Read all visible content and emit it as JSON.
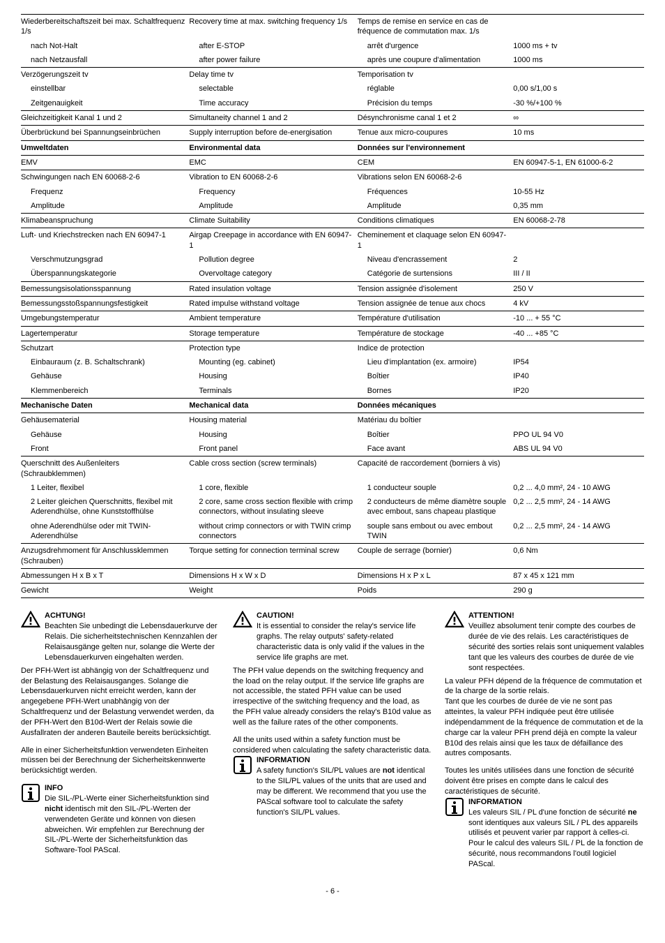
{
  "table": {
    "rows": [
      {
        "de": "Wiederbereitschaftszeit bei max. Schaltfrequenz 1/s",
        "en": "Recovery time at max. switching frequency 1/s",
        "fr": "Temps de remise en service en cas de fréquence de commutation max. 1/s",
        "val": ""
      },
      {
        "nb": true,
        "de": "  nach Not-Halt",
        "en": "  after E-STOP",
        "fr": "  arrêt d'urgence",
        "val": "1000 ms + tv"
      },
      {
        "nb": true,
        "de": "  nach Netzausfall",
        "en": "  after power failure",
        "fr": "  après une coupure d'alimentation",
        "val": "1000 ms"
      },
      {
        "de": "Verzögerungszeit tv",
        "en": "Delay time tv",
        "fr": "Temporisation tv",
        "val": ""
      },
      {
        "nb": true,
        "de": "  einstellbar",
        "en": "  selectable",
        "fr": "  réglable",
        "val": "0,00 s/1,00 s"
      },
      {
        "nb": true,
        "de": "  Zeitgenauigkeit",
        "en": "  Time accuracy",
        "fr": "  Précision du temps",
        "val": "-30 %/+100 %"
      },
      {
        "de": "Gleichzeitigkeit Kanal 1 und 2",
        "en": "Simultaneity channel 1 and 2",
        "fr": "Désynchronisme canal 1 et 2",
        "val": "∞"
      },
      {
        "de": "Überbrückund bei Spannungseinbrüchen",
        "en": "Supply interruption before de-energisation",
        "fr": "Tenue aux micro-coupures",
        "val": "10 ms"
      },
      {
        "hdr": true,
        "de": "Umweltdaten",
        "en": "Environmental data",
        "fr": "Données sur l'environnement",
        "val": ""
      },
      {
        "de": "EMV",
        "en": "EMC",
        "fr": "CEM",
        "val": "EN 60947-5-1, EN 61000-6-2"
      },
      {
        "de": "Schwingungen nach EN 60068-2-6",
        "en": "Vibration to EN 60068-2-6",
        "fr": "Vibrations selon EN 60068-2-6",
        "val": ""
      },
      {
        "nb": true,
        "de": "  Frequenz",
        "en": "  Frequency",
        "fr": "  Fréquences",
        "val": "10-55 Hz"
      },
      {
        "nb": true,
        "de": "  Amplitude",
        "en": "  Amplitude",
        "fr": "  Amplitude",
        "val": "0,35 mm"
      },
      {
        "de": "Klimabeanspruchung",
        "en": "Climate Suitability",
        "fr": "Conditions climatiques",
        "val": "EN 60068-2-78"
      },
      {
        "de": "Luft- und Kriechstrecken nach EN 60947-1",
        "en": "Airgap Creepage in accordance with EN 60947-1",
        "fr": "Cheminement et claquage selon EN 60947-1",
        "val": ""
      },
      {
        "nb": true,
        "de": "  Verschmutzungsgrad",
        "en": "  Pollution degree",
        "fr": "  Niveau d'encrassement",
        "val": "2"
      },
      {
        "nb": true,
        "de": "  Überspannungskategorie",
        "en": "  Overvoltage category",
        "fr": "  Catégorie de surtensions",
        "val": "III / II"
      },
      {
        "de": "Bemessungsisolationsspannung",
        "en": "Rated insulation voltage",
        "fr": "Tension assignée d'isolement",
        "val": "250 V"
      },
      {
        "de": "Bemessungsstoßspannungsfestigkeit",
        "en": "Rated impulse withstand voltage",
        "fr": "Tension assignée de tenue aux chocs",
        "val": "4 kV"
      },
      {
        "de": "Umgebungstemperatur",
        "en": "Ambient temperature",
        "fr": "Température d'utilisation",
        "val": "-10 ... + 55 °C"
      },
      {
        "de": "Lagertemperatur",
        "en": "Storage temperature",
        "fr": "Température de stockage",
        "val": "-40 ... +85 °C"
      },
      {
        "de": "Schutzart",
        "en": "Protection type",
        "fr": "Indice de protection",
        "val": ""
      },
      {
        "nb": true,
        "de": "  Einbauraum (z. B. Schaltschrank)",
        "en": "  Mounting (eg. cabinet)",
        "fr": "  Lieu d'implantation (ex. armoire)",
        "val": "IP54"
      },
      {
        "nb": true,
        "de": "  Gehäuse",
        "en": "  Housing",
        "fr": "  Boîtier",
        "val": "IP40"
      },
      {
        "nb": true,
        "de": "  Klemmenbereich",
        "en": "  Terminals",
        "fr": "  Bornes",
        "val": "IP20"
      },
      {
        "hdr": true,
        "de": "Mechanische Daten",
        "en": "Mechanical data",
        "fr": "Données mécaniques",
        "val": ""
      },
      {
        "de": "Gehäusematerial",
        "en": "Housing material",
        "fr": "Matériau du boîtier",
        "val": ""
      },
      {
        "nb": true,
        "de": "  Gehäuse",
        "en": "  Housing",
        "fr": "  Boîtier",
        "val": "PPO  UL 94 V0"
      },
      {
        "nb": true,
        "de": "  Front",
        "en": "  Front panel",
        "fr": "  Face avant",
        "val": "ABS UL 94 V0"
      },
      {
        "de": "Querschnitt des Außenleiters (Schraubklemmen)",
        "en": "Cable cross section (screw terminals)",
        "fr": "Capacité de raccordement (borniers à vis)",
        "val": ""
      },
      {
        "nb": true,
        "de": "  1 Leiter, flexibel",
        "en": "  1 core, flexible",
        "fr": "  1 conducteur souple",
        "val": "0,2 ... 4,0 mm², 24 - 10 AWG"
      },
      {
        "nb": true,
        "de": "  2 Leiter gleichen Querschnitts, flexibel mit Aderendhülse, ohne Kunststoffhülse",
        "en": "  2 core, same cross section flexible with crimp connectors, without insulating sleeve",
        "fr": "  2 conducteurs de même diamètre souple avec embout, sans chapeau plastique",
        "val": "0,2 ... 2,5 mm², 24 - 14 AWG"
      },
      {
        "nb": true,
        "de": "  ohne Aderendhülse oder mit TWIN-Aderendhülse",
        "en": "  without crimp connectors or with TWIN crimp connectors",
        "fr": "  souple sans embout ou avec embout TWIN",
        "val": "0,2 ... 2,5 mm², 24 - 14 AWG"
      },
      {
        "de": "Anzugsdrehmoment für Anschlussklemmen (Schrauben)",
        "en": "Torque setting for connection terminal screw",
        "fr": "Couple de serrage (bornier)",
        "val": "0,6 Nm"
      },
      {
        "de": "Abmessungen H x B x T",
        "en": "Dimensions H x W x D",
        "fr": "Dimensions H x P x L",
        "val": "87  x 45 x 121 mm"
      },
      {
        "de": "Gewicht",
        "en": "Weight",
        "fr": "Poids",
        "val": "290 g"
      }
    ],
    "bottomBorder": true
  },
  "notes": {
    "de": {
      "achtung_title": "ACHTUNG!",
      "achtung_body": "Beachten Sie unbedingt die Lebensdauerkurve der Relais. Die sicherheitstechnischen Kennzahlen der Relaisausgänge gelten nur, solange die Werte der Lebensdauer­kurven eingehalten werden.",
      "para1": "Der PFH-Wert ist abhängig von der Schaltfrequenz und der Belastung des Relaisausganges. Solange die Lebensdauerkurven nicht erreicht werden, kann der angegebene PFH-Wert unabhän­gig von der Schaltfrequenz und der Belastung verwendet werden, da der PFH-Wert den B10d-Wert der Relais sowie die Ausfallraten der anderen Bauteile bereits berücksichtigt.",
      "para2": "Alle in einer Sicherheitsfunktion verwende­ten Einheiten müssen bei der Berechnung der Sicherheitskennwerte berücksichtigt werden.",
      "info_title": "INFO",
      "info_body": "Die SIL-/PL-Werte einer Sicherheits­funktion sind <b>nicht</b> identisch mit den SIL-/PL-Werten der verwendeten Geräte und können von diesen abweichen. Wir empfehlen zur Berechnung der SIL-/PL-Werte der Sicherheits­funktion das Software-Tool PAScal."
    },
    "en": {
      "caution_title": "CAUTION!",
      "caution_body": "It is essential to consider the relay's service life graphs. The relay outputs' safety-related characteristic data is only valid if the values in the service life graphs are met.",
      "para1": "The PFH value depends on the switching frequency and the load on the relay output. If the service life graphs are not accessible, the stated PFH value can be used irrespective of the switching frequency and the load, as the PFH value already considers the relay's B10d value as well as the failure rates of the other components.",
      "para2": "All the units used within a safety function must be considered when calculating the safety characteristic data.",
      "info_title": "INFORMATION",
      "info_body": "A safety function's SIL/PL values are <b>not</b> identical to the SIL/PL values of the units that are used and may be different. We recommend that you use the PAScal software tool to calculate the safety function's SIL/PL values."
    },
    "fr": {
      "attention_title": "ATTENTION!",
      "attention_body": "Veuillez absolument tenir compte des courbes de durée de vie des relais. Les caractéristiques de sécurité des sorties relais sont uniquement valables tant que les valeurs des courbes de durée de vie sont respectées.",
      "para1": "La valeur PFH dépend de la fréquence de commutation et de la charge de la sortie relais.",
      "para1b": "Tant que les courbes de durée de vie ne sont pas atteintes, la valeur PFH indiquée peut être utilisée indépendamment de la fréquence de commutation et de la charge car la valeur PFH prend déjà en compte la valeur B10d des relais ainsi que les taux de défaillance des autres composants.",
      "para2": "Toutes les unités utilisées dans une fonction de sécurité doivent être prises en compte dans le calcul des caractéristiques de sécurité.",
      "info_title": "INFORMATION",
      "info_body": "Les valeurs SIL / PL d'une fonction de sécurité <b>ne</b> sont identiques aux valeurs SIL / PL des appareils utilisés et peuvent varier par rapport à celles-ci. Pour le calcul des valeurs SIL / PL de la fonction de sécurité, nous recommandons l'outil logiciel PAScal."
    }
  },
  "pagenum": "- 6 -"
}
